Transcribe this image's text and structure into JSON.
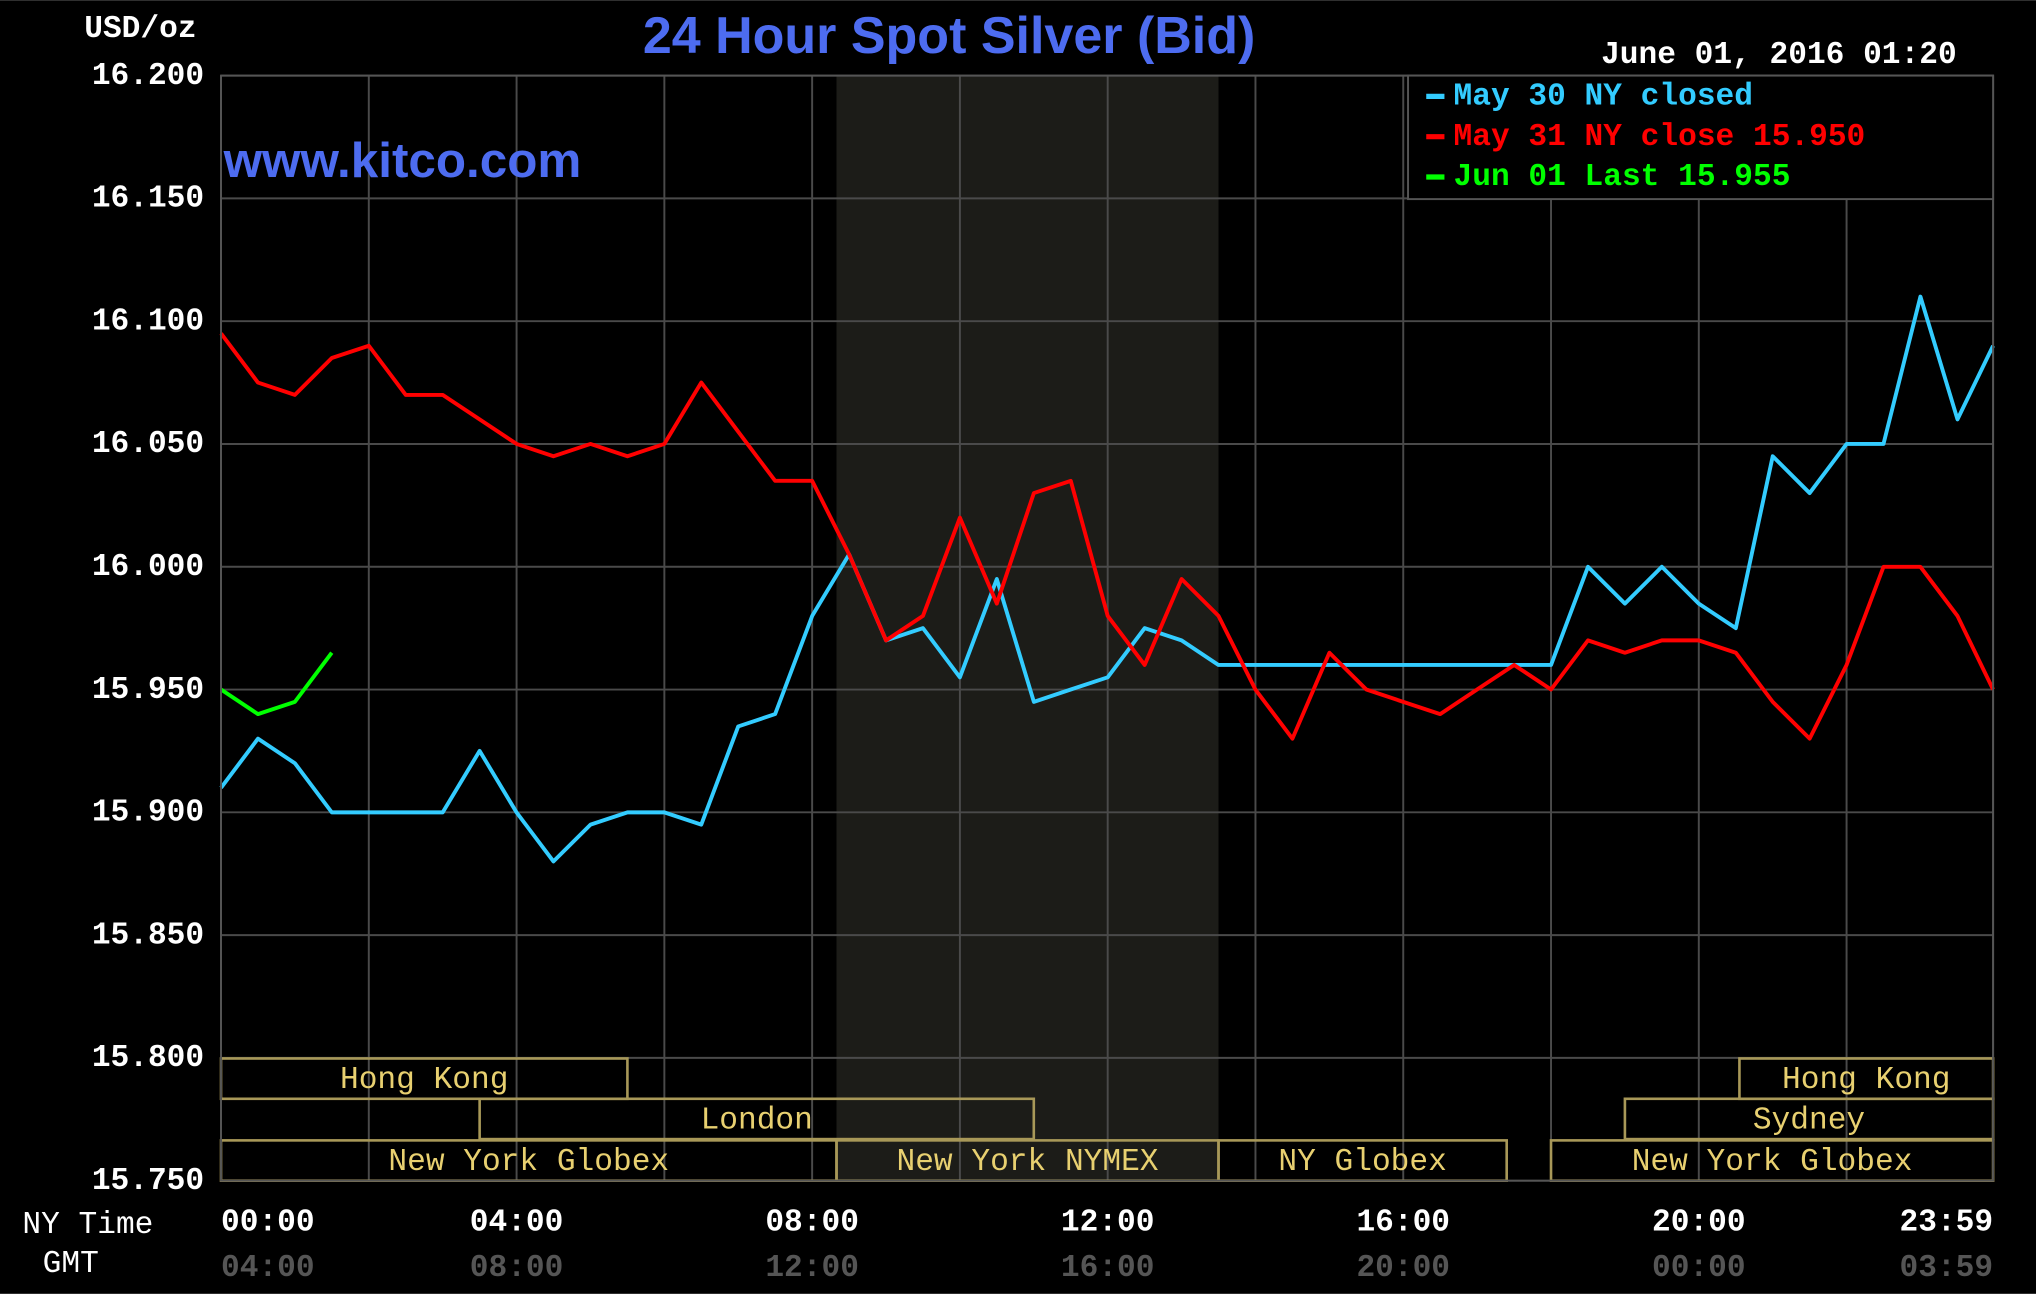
{
  "chart_data": {
    "type": "line",
    "title": "24 Hour Spot Silver (Bid)",
    "timestamp": "June 01, 2016 01:20",
    "y_label": "USD/oz",
    "watermark": "www.kitco.com",
    "x_label": "NY Time",
    "x2_label": "GMT",
    "x": [
      0,
      0.5,
      1,
      1.5,
      2,
      2.5,
      3,
      3.5,
      4,
      4.5,
      5,
      5.5,
      6,
      6.5,
      7,
      7.5,
      8,
      8.5,
      9,
      9.5,
      10,
      10.5,
      11,
      11.5,
      12,
      12.5,
      13,
      13.5,
      14,
      14.5,
      15,
      15.5,
      16,
      16.5,
      17,
      17.5,
      18,
      18.5,
      19,
      19.5,
      20,
      20.5,
      21,
      21.5,
      22,
      22.5,
      23,
      23.5,
      23.983
    ],
    "series": [
      {
        "name": "May 30 NY closed",
        "color": "#33ccff",
        "values": [
          15.91,
          15.93,
          15.92,
          15.9,
          15.9,
          15.9,
          15.9,
          15.925,
          15.9,
          15.88,
          15.895,
          15.9,
          15.9,
          15.895,
          15.935,
          15.94,
          15.98,
          16.005,
          15.97,
          15.975,
          15.955,
          15.995,
          15.945,
          15.95,
          15.955,
          15.975,
          15.97,
          15.96,
          15.96,
          15.96,
          15.96,
          15.96,
          15.96,
          15.96,
          15.96,
          15.96,
          15.96,
          16.0,
          15.985,
          16.0,
          15.985,
          15.975,
          16.045,
          16.03,
          16.05,
          16.05,
          16.11,
          16.06,
          16.09
        ]
      },
      {
        "name": "May 31 NY close 15.950",
        "color": "#ff0000",
        "values": [
          16.095,
          16.075,
          16.07,
          16.085,
          16.09,
          16.07,
          16.07,
          16.06,
          16.05,
          16.045,
          16.05,
          16.045,
          16.05,
          16.075,
          16.055,
          16.035,
          16.035,
          16.005,
          15.97,
          15.98,
          16.02,
          15.985,
          16.03,
          16.035,
          15.98,
          15.96,
          15.995,
          15.98,
          15.95,
          15.93,
          15.965,
          15.95,
          15.945,
          15.94,
          15.95,
          15.96,
          15.95,
          15.97,
          15.965,
          15.97,
          15.97,
          15.965,
          15.945,
          15.93,
          15.96,
          16.0,
          16.0,
          15.98,
          15.95
        ]
      },
      {
        "name": "Jun 01 Last 15.955",
        "color": "#00ff00",
        "values": [
          15.95,
          15.94,
          15.945,
          15.965,
          null,
          null,
          null,
          null,
          null,
          null,
          null,
          null,
          null,
          null,
          null,
          null,
          null,
          null,
          null,
          null,
          null,
          null,
          null,
          null,
          null,
          null,
          null,
          null,
          null,
          null,
          null,
          null,
          null,
          null,
          null,
          null,
          null,
          null,
          null,
          null,
          null,
          null,
          null,
          null,
          null,
          null,
          null,
          null,
          null
        ]
      }
    ],
    "xlim": [
      0,
      23.983
    ],
    "xticks": [
      {
        "value": 0,
        "label": "00:00"
      },
      {
        "value": 4,
        "label": "04:00"
      },
      {
        "value": 8,
        "label": "08:00"
      },
      {
        "value": 12,
        "label": "12:00"
      },
      {
        "value": 16,
        "label": "16:00"
      },
      {
        "value": 20,
        "label": "20:00"
      },
      {
        "value": 23.983,
        "label": "23:59"
      }
    ],
    "x2ticks": [
      "04:00",
      "08:00",
      "12:00",
      "16:00",
      "20:00",
      "00:00",
      "03:59"
    ],
    "xminor": [
      2,
      6,
      10,
      14,
      18,
      22
    ],
    "ylim": [
      15.75,
      16.2
    ],
    "yticks": [
      {
        "value": 15.75,
        "label": "15.750"
      },
      {
        "value": 15.8,
        "label": "15.800"
      },
      {
        "value": 15.85,
        "label": "15.850"
      },
      {
        "value": 15.9,
        "label": "15.900"
      },
      {
        "value": 15.95,
        "label": "15.950"
      },
      {
        "value": 16,
        "label": "16.000"
      },
      {
        "value": 16.05,
        "label": "16.050"
      },
      {
        "value": 16.1,
        "label": "16.100"
      },
      {
        "value": 16.15,
        "label": "16.150"
      },
      {
        "value": 16.2,
        "label": "16.200"
      }
    ],
    "grid": true,
    "legend": "top-right",
    "highlight_x": [
      8.33,
      13.5
    ],
    "sessions": [
      {
        "label": "Hong Kong",
        "start": 0,
        "end": 5.5,
        "row": 0
      },
      {
        "label": "Hong Kong",
        "start": 20.55,
        "end": 23.983,
        "row": 0
      },
      {
        "label": "London",
        "start": 3.5,
        "end": 11,
        "row": 1
      },
      {
        "label": "Sydney",
        "start": 19,
        "end": 23.983,
        "row": 1
      },
      {
        "label": "New York Globex",
        "start": 0,
        "end": 8.33,
        "row": 2
      },
      {
        "label": "New York NYMEX",
        "start": 8.33,
        "end": 13.5,
        "row": 2
      },
      {
        "label": "NY Globex",
        "start": 13.5,
        "end": 17.4,
        "row": 2
      },
      {
        "label": "New York Globex",
        "start": 18,
        "end": 23.983,
        "row": 2
      }
    ]
  }
}
